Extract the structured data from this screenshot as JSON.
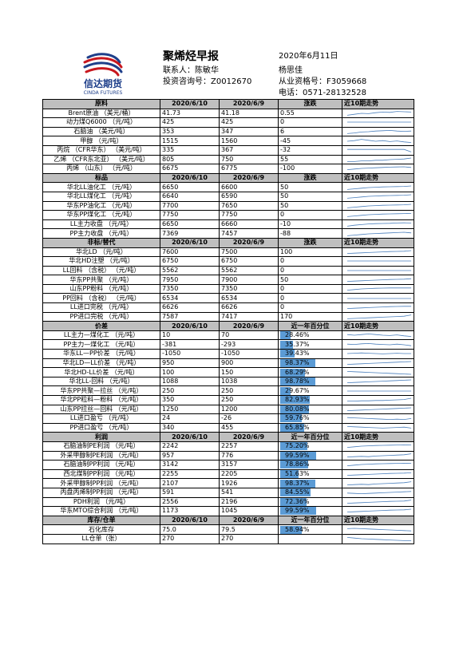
{
  "header": {
    "title": "聚烯烃早报",
    "date": "2020年6月11日",
    "contact_label": "联系人：陈敏华",
    "consult_label": "投资咨询号：Z0012670",
    "analyst": "杨思佳",
    "qual_label": "从业资格号：F3059668",
    "phone_label": "电话：0571-28132528"
  },
  "logo": {
    "text": "信达期货",
    "sub": "CINDA FUTURES",
    "color": "#c8171e"
  },
  "colors": {
    "section_bg": "#bfbfbf",
    "bar": "#5b9bd5",
    "spark": "#4a7ebb"
  },
  "sections": [
    {
      "key": "raw",
      "headers": [
        "原料",
        "2020/6/10",
        "2020/6/9",
        "涨跌",
        "近10期走势"
      ],
      "rows": [
        {
          "name": "Brent原油 （美元/桶）",
          "v1": "41.73",
          "v2": "41.18",
          "v3": "0.55",
          "trend": [
            0.2,
            0.35,
            0.5,
            0.45,
            0.6,
            0.7,
            0.65,
            0.8,
            0.75,
            0.7
          ]
        },
        {
          "name": "动力煤Q6000 （元/吨）",
          "v1": "425",
          "v2": "425",
          "v3": "0",
          "trend": [
            0.5,
            0.5,
            0.5,
            0.5,
            0.5,
            0.5,
            0.5,
            0.5,
            0.5,
            0.5
          ]
        },
        {
          "name": "石脑油 （美元/吨）",
          "v1": "353",
          "v2": "347",
          "v3": "6",
          "trend": [
            0.2,
            0.3,
            0.45,
            0.5,
            0.6,
            0.65,
            0.7,
            0.6,
            0.55,
            0.6
          ]
        },
        {
          "name": "甲醇 （元/吨）",
          "v1": "1515",
          "v2": "1560",
          "v3": "-45",
          "trend": [
            0.5,
            0.6,
            0.8,
            0.65,
            0.5,
            0.6,
            0.45,
            0.55,
            0.4,
            0.3
          ]
        },
        {
          "name": "丙烷 （CFR华东） （美元/吨）",
          "v1": "335",
          "v2": "367",
          "v3": "-32",
          "trend": [
            0.6,
            0.6,
            0.6,
            0.6,
            0.6,
            0.6,
            0.6,
            0.6,
            0.6,
            0.2
          ]
        },
        {
          "name": "乙烯 （CFR东北亚） （美元/吨）",
          "v1": "805",
          "v2": "750",
          "v3": "55",
          "trend": [
            0.2,
            0.2,
            0.3,
            0.3,
            0.4,
            0.4,
            0.5,
            0.55,
            0.6,
            0.75
          ]
        },
        {
          "name": "丙烯 （山东） （元/吨）",
          "v1": "6675",
          "v2": "6775",
          "v3": "-100",
          "trend": [
            0.3,
            0.4,
            0.5,
            0.55,
            0.6,
            0.65,
            0.7,
            0.72,
            0.75,
            0.65
          ]
        }
      ]
    },
    {
      "key": "spot",
      "headers": [
        "标品",
        "2020/6/10",
        "2020/6/9",
        "涨跌",
        "近10期走势"
      ],
      "rows": [
        {
          "name": "华北LL油化工 （元/吨）",
          "v1": "6650",
          "v2": "6600",
          "v3": "50",
          "trend": [
            0.2,
            0.3,
            0.4,
            0.5,
            0.55,
            0.6,
            0.62,
            0.65,
            0.68,
            0.75
          ]
        },
        {
          "name": "华北LL煤化工 （元/吨）",
          "v1": "6640",
          "v2": "6590",
          "v3": "50",
          "trend": [
            0.2,
            0.3,
            0.4,
            0.5,
            0.55,
            0.6,
            0.62,
            0.65,
            0.68,
            0.75
          ]
        },
        {
          "name": "华东PP油化工 （元/吨）",
          "v1": "7700",
          "v2": "7650",
          "v3": "50",
          "trend": [
            0.2,
            0.3,
            0.4,
            0.5,
            0.55,
            0.6,
            0.62,
            0.65,
            0.68,
            0.75
          ]
        },
        {
          "name": "华东PP煤化工 （元/吨）",
          "v1": "7750",
          "v2": "7750",
          "v3": "0",
          "trend": [
            0.2,
            0.3,
            0.4,
            0.5,
            0.55,
            0.6,
            0.62,
            0.65,
            0.68,
            0.7
          ]
        },
        {
          "name": "LL主力收盘 （元/吨）",
          "v1": "6650",
          "v2": "6660",
          "v3": "-10",
          "trend": [
            0.2,
            0.35,
            0.45,
            0.55,
            0.6,
            0.62,
            0.65,
            0.7,
            0.72,
            0.7
          ]
        },
        {
          "name": "PP主力收盘 （元/吨）",
          "v1": "7369",
          "v2": "7457",
          "v3": "-88",
          "trend": [
            0.2,
            0.3,
            0.4,
            0.5,
            0.55,
            0.6,
            0.65,
            0.7,
            0.75,
            0.65
          ]
        }
      ]
    },
    {
      "key": "nonstd",
      "headers": [
        "非标/替代",
        "2020/6/10",
        "2020/6/9",
        "涨跌",
        "近10期走势"
      ],
      "rows": [
        {
          "name": "华北LD （元/吨）",
          "v1": "7600",
          "v2": "7500",
          "v3": "100",
          "trend": [
            0.3,
            0.35,
            0.4,
            0.45,
            0.5,
            0.55,
            0.6,
            0.62,
            0.65,
            0.75
          ]
        },
        {
          "name": "华北HD注塑 （元/吨）",
          "v1": "6750",
          "v2": "6750",
          "v3": "0",
          "trend": [
            0.5,
            0.5,
            0.5,
            0.5,
            0.5,
            0.5,
            0.5,
            0.5,
            0.5,
            0.5
          ]
        },
        {
          "name": "LL回料 （含税） （元/吨）",
          "v1": "5562",
          "v2": "5562",
          "v3": "0",
          "trend": [
            0.5,
            0.5,
            0.5,
            0.5,
            0.5,
            0.5,
            0.5,
            0.5,
            0.5,
            0.5
          ]
        },
        {
          "name": "华东PP共聚 （元/吨）",
          "v1": "7950",
          "v2": "7900",
          "v3": "50",
          "trend": [
            0.3,
            0.35,
            0.4,
            0.45,
            0.5,
            0.55,
            0.6,
            0.62,
            0.65,
            0.72
          ]
        },
        {
          "name": "山东PP粉料 （元/吨）",
          "v1": "7350",
          "v2": "7350",
          "v3": "0",
          "trend": [
            0.3,
            0.4,
            0.5,
            0.55,
            0.6,
            0.62,
            0.65,
            0.65,
            0.65,
            0.65
          ]
        },
        {
          "name": "PP回料 （含税） （元/吨）",
          "v1": "6534",
          "v2": "6534",
          "v3": "0",
          "trend": [
            0.5,
            0.5,
            0.5,
            0.5,
            0.5,
            0.5,
            0.5,
            0.5,
            0.5,
            0.5
          ]
        },
        {
          "name": "LL进口完税 （元/吨）",
          "v1": "6626",
          "v2": "6626",
          "v3": "0",
          "trend": [
            0.3,
            0.35,
            0.4,
            0.45,
            0.5,
            0.55,
            0.6,
            0.62,
            0.65,
            0.65
          ]
        },
        {
          "name": "PP进口完税 （元/吨）",
          "v1": "7587",
          "v2": "7417",
          "v3": "170",
          "trend": [
            0.2,
            0.25,
            0.3,
            0.35,
            0.4,
            0.45,
            0.5,
            0.55,
            0.6,
            0.8
          ]
        }
      ]
    },
    {
      "key": "spread",
      "headers": [
        "价差",
        "2020/6/10",
        "2020/6/9",
        "近一年百分位",
        "近10期走势"
      ],
      "rows": [
        {
          "name": "LL主力—煤化工 （元/吨）",
          "v1": "10",
          "v2": "70",
          "pct": 28.46,
          "pct_text": "28.46%",
          "trend": [
            0.6,
            0.5,
            0.6,
            0.7,
            0.6,
            0.5,
            0.45,
            0.55,
            0.4,
            0.3
          ]
        },
        {
          "name": "PP主力—煤化工 （元/吨）",
          "v1": "-381",
          "v2": "-293",
          "pct": 35.37,
          "pct_text": "35.37%",
          "trend": [
            0.6,
            0.55,
            0.65,
            0.7,
            0.6,
            0.55,
            0.5,
            0.6,
            0.5,
            0.35
          ]
        },
        {
          "name": "华东LL—PP价差 （元/吨）",
          "v1": "-1050",
          "v2": "-1050",
          "pct": 39.43,
          "pct_text": "39.43%",
          "trend": [
            0.5,
            0.55,
            0.6,
            0.55,
            0.5,
            0.45,
            0.5,
            0.55,
            0.5,
            0.5
          ]
        },
        {
          "name": "华北LD—LL价差 （元/吨）",
          "v1": "950",
          "v2": "900",
          "pct": 98.37,
          "pct_text": "98.37%",
          "trend": [
            0.3,
            0.35,
            0.4,
            0.45,
            0.5,
            0.55,
            0.6,
            0.65,
            0.7,
            0.75
          ]
        },
        {
          "name": "华北HD-LL价差 （元/吨）",
          "v1": "100",
          "v2": "150",
          "pct": 68.29,
          "pct_text": "68.29%",
          "trend": [
            0.7,
            0.65,
            0.6,
            0.55,
            0.5,
            0.45,
            0.4,
            0.35,
            0.3,
            0.25
          ]
        },
        {
          "name": "华北LL-回料 （元/吨）",
          "v1": "1088",
          "v2": "1038",
          "pct": 98.78,
          "pct_text": "98.78%",
          "trend": [
            0.3,
            0.35,
            0.4,
            0.45,
            0.5,
            0.55,
            0.6,
            0.65,
            0.7,
            0.75
          ]
        },
        {
          "name": "华东PP共聚—拉丝 （元/吨）",
          "v1": "250",
          "v2": "250",
          "pct": 29.67,
          "pct_text": "29.67%",
          "trend": [
            0.5,
            0.5,
            0.5,
            0.5,
            0.5,
            0.5,
            0.5,
            0.5,
            0.5,
            0.5
          ]
        },
        {
          "name": "华北PP粒料—粉料 （元/吨）",
          "v1": "350",
          "v2": "250",
          "pct": 82.93,
          "pct_text": "82.93%",
          "trend": [
            0.3,
            0.3,
            0.35,
            0.35,
            0.4,
            0.4,
            0.45,
            0.5,
            0.55,
            0.75
          ]
        },
        {
          "name": "山东PP拉丝—回料 （元/吨）",
          "v1": "1250",
          "v2": "1200",
          "pct": 80.08,
          "pct_text": "80.08%",
          "trend": [
            0.3,
            0.35,
            0.4,
            0.45,
            0.5,
            0.55,
            0.6,
            0.65,
            0.7,
            0.75
          ]
        },
        {
          "name": "LL进口盈亏 （元/吨）",
          "v1": "24",
          "v2": "-26",
          "pct": 59.76,
          "pct_text": "59.76%",
          "trend": [
            0.6,
            0.55,
            0.5,
            0.45,
            0.4,
            0.35,
            0.3,
            0.35,
            0.3,
            0.45
          ]
        },
        {
          "name": "PP进口盈亏 （元/吨）",
          "v1": "340",
          "v2": "455",
          "pct": 65.85,
          "pct_text": "65.85%",
          "trend": [
            0.7,
            0.65,
            0.6,
            0.55,
            0.5,
            0.45,
            0.5,
            0.55,
            0.6,
            0.45
          ]
        }
      ]
    },
    {
      "key": "profit",
      "headers": [
        "利润",
        "2020/6/10",
        "2020/6/9",
        "近一年百分位",
        "近10期走势"
      ],
      "rows": [
        {
          "name": "石脑油制PE利润 （元/吨）",
          "v1": "2242",
          "v2": "2257",
          "pct": 75.2,
          "pct_text": "75.20%",
          "trend": [
            0.3,
            0.4,
            0.5,
            0.55,
            0.6,
            0.62,
            0.65,
            0.68,
            0.7,
            0.68
          ]
        },
        {
          "name": "外采甲醇制PE利润 （元/吨）",
          "v1": "957",
          "v2": "776",
          "pct": 99.59,
          "pct_text": "99.59%",
          "trend": [
            0.3,
            0.35,
            0.4,
            0.35,
            0.45,
            0.5,
            0.55,
            0.6,
            0.65,
            0.8
          ]
        },
        {
          "name": "石脑油制PP利润 （元/吨）",
          "v1": "3142",
          "v2": "3157",
          "pct": 78.86,
          "pct_text": "78.86%",
          "trend": [
            0.3,
            0.4,
            0.5,
            0.55,
            0.6,
            0.62,
            0.65,
            0.68,
            0.7,
            0.68
          ]
        },
        {
          "name": "西北煤制PP利润 （元/吨）",
          "v1": "2255",
          "v2": "2205",
          "pct": 51.63,
          "pct_text": "51.63%",
          "trend": [
            0.3,
            0.35,
            0.4,
            0.45,
            0.5,
            0.55,
            0.6,
            0.62,
            0.65,
            0.7
          ]
        },
        {
          "name": "外采甲醇制PP利润 （元/吨）",
          "v1": "2107",
          "v2": "1926",
          "pct": 98.37,
          "pct_text": "98.37%",
          "trend": [
            0.3,
            0.35,
            0.4,
            0.35,
            0.45,
            0.5,
            0.55,
            0.6,
            0.65,
            0.8
          ]
        },
        {
          "name": "丙盘丙烯制PP利润 （元/吨）",
          "v1": "591",
          "v2": "541",
          "pct": 84.55,
          "pct_text": "84.55%",
          "trend": [
            0.4,
            0.35,
            0.3,
            0.35,
            0.4,
            0.45,
            0.5,
            0.55,
            0.6,
            0.65
          ]
        },
        {
          "name": "PDH利润 （元/吨）",
          "v1": "2556",
          "v2": "2196",
          "pct": 72.36,
          "pct_text": "72.36%",
          "trend": [
            0.3,
            0.35,
            0.4,
            0.45,
            0.5,
            0.55,
            0.6,
            0.62,
            0.65,
            0.8
          ]
        },
        {
          "name": "华东MTO综合利润 （元/吨）",
          "v1": "1173",
          "v2": "1045",
          "pct": 99.59,
          "pct_text": "99.59%",
          "trend": [
            0.3,
            0.35,
            0.4,
            0.45,
            0.5,
            0.55,
            0.6,
            0.62,
            0.65,
            0.75
          ]
        }
      ]
    },
    {
      "key": "stock",
      "headers": [
        "库存/仓单",
        "2020/6/10",
        "2020/6/9",
        "近一年百分位",
        "近10期走势"
      ],
      "rows": [
        {
          "name": "石化库存",
          "v1": "75.0",
          "v2": "79.5",
          "pct": 58.94,
          "pct_text": "58.94%",
          "trend": [
            0.7,
            0.75,
            0.7,
            0.65,
            0.6,
            0.55,
            0.5,
            0.45,
            0.4,
            0.35
          ]
        },
        {
          "name": "LL仓单（张）",
          "v1": "270",
          "v2": "270",
          "pct": null,
          "pct_text": "",
          "trend": [
            0.7,
            0.6,
            0.5,
            0.45,
            0.4,
            0.35,
            0.3,
            0.25,
            0.2,
            0.2
          ]
        }
      ]
    }
  ]
}
